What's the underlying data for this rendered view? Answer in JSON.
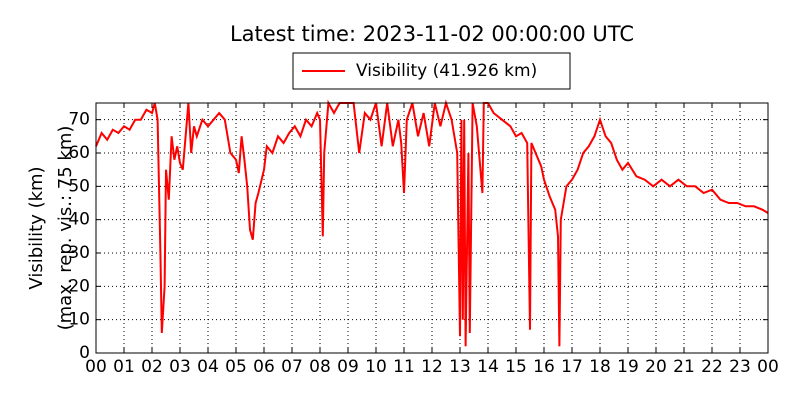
{
  "chart_data": {
    "type": "line",
    "title": "Latest time: 2023-11-02 00:00:00 UTC",
    "y_label": [
      "Visibility (km)",
      "(max. rep. vis.: 75 km)"
    ],
    "x": [
      0,
      0.2,
      0.4,
      0.6,
      0.8,
      1.0,
      1.2,
      1.4,
      1.6,
      1.8,
      2.0,
      2.1,
      2.2,
      2.3,
      2.35,
      2.45,
      2.5,
      2.6,
      2.7,
      2.8,
      2.9,
      3.0,
      3.1,
      3.2,
      3.3,
      3.4,
      3.5,
      3.6,
      3.8,
      4.0,
      4.2,
      4.4,
      4.6,
      4.8,
      5.0,
      5.1,
      5.2,
      5.3,
      5.4,
      5.5,
      5.6,
      5.7,
      5.8,
      6.0,
      6.1,
      6.3,
      6.5,
      6.7,
      6.9,
      7.1,
      7.3,
      7.5,
      7.7,
      7.9,
      8.0,
      8.1,
      8.15,
      8.3,
      8.5,
      8.7,
      9.0,
      9.2,
      9.4,
      9.6,
      9.8,
      10.0,
      10.2,
      10.4,
      10.6,
      10.8,
      10.9,
      11.0,
      11.1,
      11.3,
      11.5,
      11.7,
      11.9,
      12.1,
      12.3,
      12.5,
      12.7,
      12.9,
      13.0,
      13.05,
      13.1,
      13.15,
      13.2,
      13.3,
      13.35,
      13.45,
      13.6,
      13.8,
      13.85,
      14.0,
      14.2,
      14.5,
      14.8,
      15.0,
      15.2,
      15.4,
      15.5,
      15.55,
      15.7,
      15.9,
      16.0,
      16.2,
      16.4,
      16.5,
      16.55,
      16.6,
      16.8,
      17.0,
      17.2,
      17.4,
      17.6,
      17.8,
      18.0,
      18.2,
      18.4,
      18.6,
      18.8,
      19.0,
      19.3,
      19.6,
      19.9,
      20.2,
      20.5,
      20.8,
      21.1,
      21.4,
      21.7,
      22.0,
      22.3,
      22.6,
      22.9,
      23.2,
      23.5,
      23.8,
      24.0
    ],
    "series": [
      {
        "name": "Visibility (41.926 km)",
        "color": "#ff0000",
        "values": [
          62,
          66,
          64,
          67,
          66,
          68,
          67,
          70,
          70,
          73,
          72,
          75,
          70,
          30,
          6,
          20,
          55,
          46,
          65,
          58,
          62,
          57,
          55,
          65,
          75,
          60,
          68,
          65,
          70,
          68,
          70,
          72,
          70,
          60,
          58,
          54,
          65,
          58,
          50,
          37,
          34,
          45,
          48,
          55,
          62,
          60,
          65,
          63,
          66,
          68,
          65,
          70,
          68,
          72,
          70,
          35,
          60,
          75,
          72,
          75,
          75,
          75,
          60,
          72,
          70,
          75,
          62,
          75,
          62,
          70,
          63,
          48,
          70,
          75,
          65,
          72,
          62,
          75,
          68,
          75,
          70,
          60,
          5,
          70,
          10,
          70,
          2,
          60,
          6,
          75,
          68,
          48,
          75,
          75,
          72,
          70,
          68,
          65,
          66,
          63,
          7,
          63,
          60,
          56,
          52,
          47,
          43,
          35,
          2,
          40,
          50,
          52,
          55,
          60,
          62,
          65,
          70,
          65,
          63,
          58,
          55,
          57,
          53,
          52,
          50,
          52,
          50,
          52,
          50,
          50,
          48,
          49,
          46,
          45,
          45,
          44,
          44,
          43,
          42
        ]
      }
    ],
    "xlim": [
      0,
      24
    ],
    "xticks": [
      {
        "value": 0,
        "label": "00"
      },
      {
        "value": 1,
        "label": "01"
      },
      {
        "value": 2,
        "label": "02"
      },
      {
        "value": 3,
        "label": "03"
      },
      {
        "value": 4,
        "label": "04"
      },
      {
        "value": 5,
        "label": "05"
      },
      {
        "value": 6,
        "label": "06"
      },
      {
        "value": 7,
        "label": "07"
      },
      {
        "value": 8,
        "label": "08"
      },
      {
        "value": 9,
        "label": "09"
      },
      {
        "value": 10,
        "label": "10"
      },
      {
        "value": 11,
        "label": "11"
      },
      {
        "value": 12,
        "label": "12"
      },
      {
        "value": 13,
        "label": "13"
      },
      {
        "value": 14,
        "label": "14"
      },
      {
        "value": 15,
        "label": "15"
      },
      {
        "value": 16,
        "label": "16"
      },
      {
        "value": 17,
        "label": "17"
      },
      {
        "value": 18,
        "label": "18"
      },
      {
        "value": 19,
        "label": "19"
      },
      {
        "value": 20,
        "label": "20"
      },
      {
        "value": 21,
        "label": "21"
      },
      {
        "value": 22,
        "label": "22"
      },
      {
        "value": 23,
        "label": "23"
      },
      {
        "value": 24,
        "label": "00"
      }
    ],
    "ylim": [
      0,
      75
    ],
    "yticks": [
      0,
      10,
      20,
      30,
      40,
      50,
      60,
      70
    ],
    "grid": true
  }
}
